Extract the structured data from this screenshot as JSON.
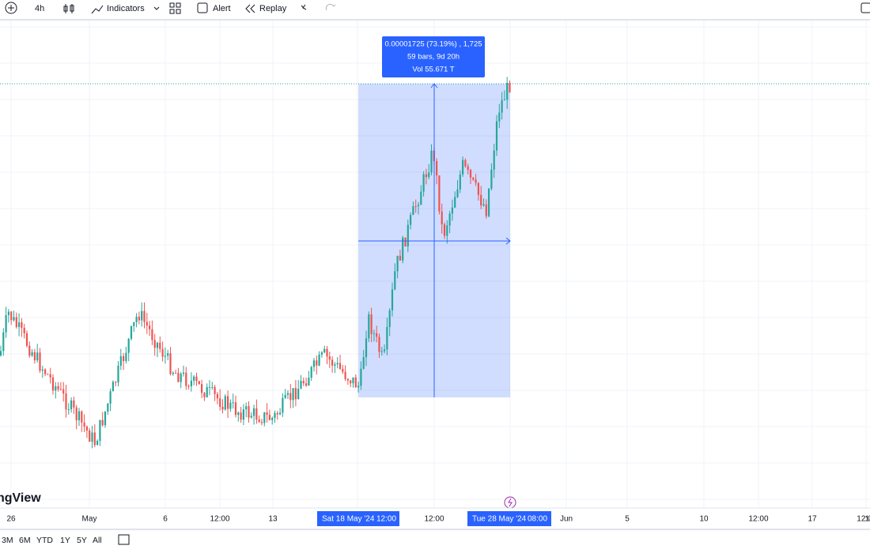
{
  "toolbar": {
    "interval": "4h",
    "indicators": "Indicators",
    "alert": "Alert",
    "replay": "Replay"
  },
  "measure": {
    "lines": [
      "0.00001725 (73.19%) , 1,725",
      "59 bars, 9d 20h",
      "Vol 55.671 T"
    ]
  },
  "watermark": "ngView",
  "time_axis": {
    "labels": [
      "26",
      "May",
      "6",
      "12:00",
      "13",
      "12:00",
      "Jun",
      "5",
      "10",
      "12:00",
      "17",
      "12:0",
      "1("
    ],
    "start": [
      "Sat 18 May '24",
      "12:00"
    ],
    "end": [
      "Tue 28 May '24",
      "08:00"
    ]
  },
  "ranges": [
    "3M",
    "6M",
    "YTD",
    "1Y",
    "5Y",
    "All"
  ]
}
